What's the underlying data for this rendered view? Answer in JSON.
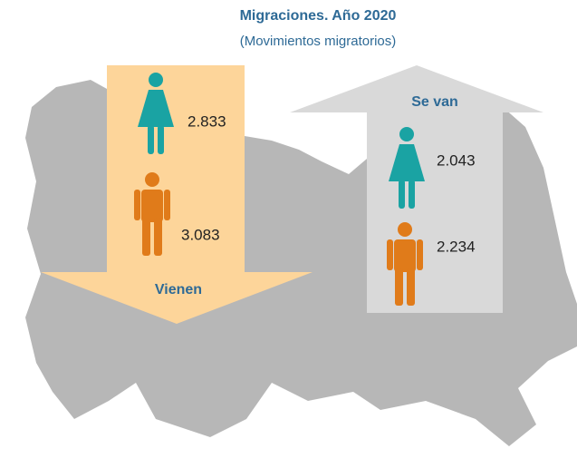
{
  "title": "Migraciones. Año 2020",
  "subtitle": "(Movimientos migratorios)",
  "incoming": {
    "label": "Vienen",
    "women": "2.833",
    "men": "3.083"
  },
  "outgoing": {
    "label": "Se van",
    "women": "2.043",
    "men": "2.234"
  }
}
